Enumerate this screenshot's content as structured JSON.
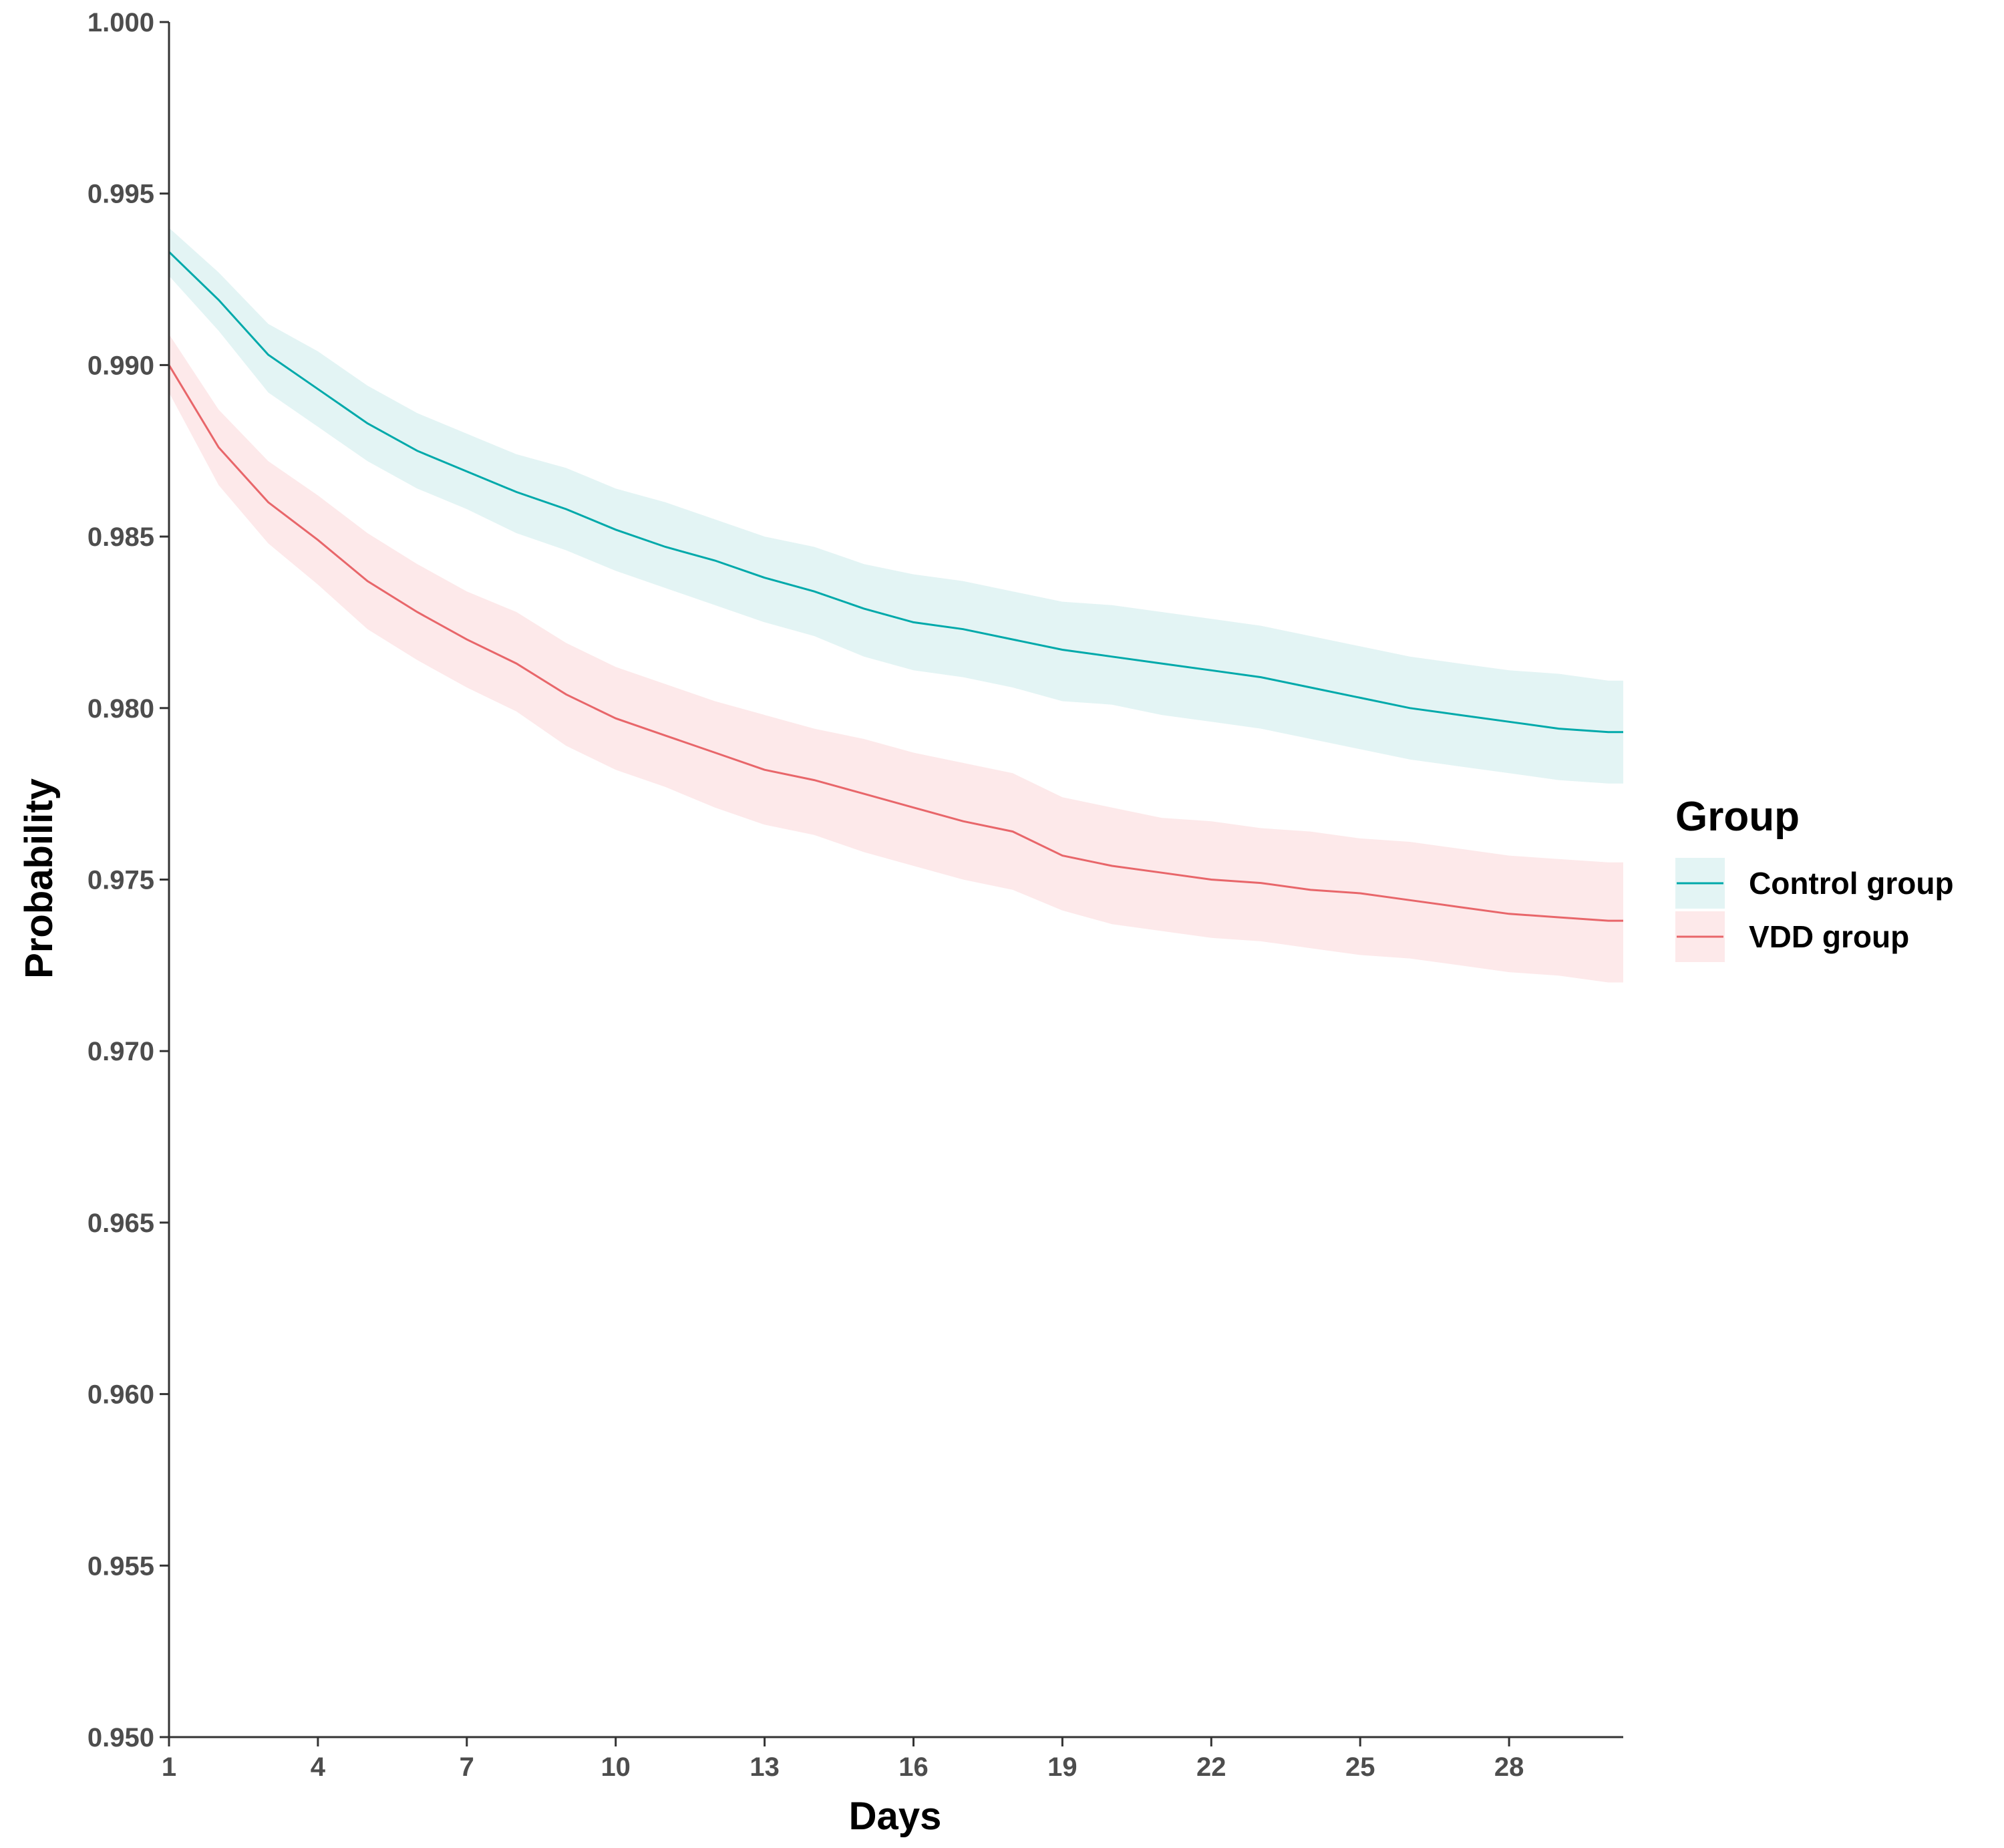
{
  "chart_data": {
    "type": "line",
    "xlabel": "Days",
    "ylabel": "Probability",
    "xlim": [
      1,
      30.3
    ],
    "ylim": [
      0.95,
      1.0
    ],
    "x_ticks": [
      1,
      4,
      7,
      10,
      13,
      16,
      19,
      22,
      25,
      28
    ],
    "y_ticks": [
      0.95,
      0.955,
      0.96,
      0.965,
      0.97,
      0.975,
      0.98,
      0.985,
      0.99,
      0.995,
      1.0
    ],
    "y_tick_labels": [
      "0.950",
      "0.955",
      "0.960",
      "0.965",
      "0.970",
      "0.975",
      "0.980",
      "0.985",
      "0.990",
      "0.995",
      "1.000"
    ],
    "grid": false,
    "legend": {
      "title": "Group",
      "placement": "right"
    },
    "series": [
      {
        "name": "Control group",
        "color": "#00A9AA",
        "band_color": "#E3F4F4",
        "x": [
          1,
          2,
          3,
          4,
          5,
          6,
          7,
          8,
          9,
          10,
          11,
          12,
          13,
          14,
          15,
          16,
          17,
          18,
          19,
          20,
          21,
          22,
          23,
          24,
          25,
          26,
          27,
          28,
          29,
          30,
          30.3
        ],
        "y": [
          0.9933,
          0.9919,
          0.9903,
          0.9893,
          0.9883,
          0.9875,
          0.9869,
          0.9863,
          0.9858,
          0.9852,
          0.9847,
          0.9843,
          0.9838,
          0.9834,
          0.9829,
          0.9825,
          0.9823,
          0.982,
          0.9817,
          0.9815,
          0.9813,
          0.9811,
          0.9809,
          0.9806,
          0.9803,
          0.98,
          0.9798,
          0.9796,
          0.9794,
          0.9793,
          0.9793
        ],
        "lower": [
          0.9926,
          0.991,
          0.9892,
          0.9882,
          0.9872,
          0.9864,
          0.9858,
          0.9851,
          0.9846,
          0.984,
          0.9835,
          0.983,
          0.9825,
          0.9821,
          0.9815,
          0.9811,
          0.9809,
          0.9806,
          0.9802,
          0.9801,
          0.9798,
          0.9796,
          0.9794,
          0.9791,
          0.9788,
          0.9785,
          0.9783,
          0.9781,
          0.9779,
          0.9778,
          0.9778
        ],
        "upper": [
          0.994,
          0.9927,
          0.9912,
          0.9904,
          0.9894,
          0.9886,
          0.988,
          0.9874,
          0.987,
          0.9864,
          0.986,
          0.9855,
          0.985,
          0.9847,
          0.9842,
          0.9839,
          0.9837,
          0.9834,
          0.9831,
          0.983,
          0.9828,
          0.9826,
          0.9824,
          0.9821,
          0.9818,
          0.9815,
          0.9813,
          0.9811,
          0.981,
          0.9808,
          0.9808
        ]
      },
      {
        "name": "VDD group",
        "color": "#E8666A",
        "band_color": "#FDE9EA",
        "x": [
          1,
          2,
          3,
          4,
          5,
          6,
          7,
          8,
          9,
          10,
          11,
          12,
          13,
          14,
          15,
          16,
          17,
          18,
          19,
          20,
          21,
          22,
          23,
          24,
          25,
          26,
          27,
          28,
          29,
          30,
          30.3
        ],
        "y": [
          0.99,
          0.9876,
          0.986,
          0.9849,
          0.9837,
          0.9828,
          0.982,
          0.9813,
          0.9804,
          0.9797,
          0.9792,
          0.9787,
          0.9782,
          0.9779,
          0.9775,
          0.9771,
          0.9767,
          0.9764,
          0.9757,
          0.9754,
          0.9752,
          0.975,
          0.9749,
          0.9747,
          0.9746,
          0.9744,
          0.9742,
          0.974,
          0.9739,
          0.9738,
          0.9738
        ],
        "lower": [
          0.9892,
          0.9865,
          0.9848,
          0.9836,
          0.9823,
          0.9814,
          0.9806,
          0.9799,
          0.9789,
          0.9782,
          0.9777,
          0.9771,
          0.9766,
          0.9763,
          0.9758,
          0.9754,
          0.975,
          0.9747,
          0.9741,
          0.9737,
          0.9735,
          0.9733,
          0.9732,
          0.973,
          0.9728,
          0.9727,
          0.9725,
          0.9723,
          0.9722,
          0.972,
          0.972
        ],
        "upper": [
          0.9909,
          0.9887,
          0.9872,
          0.9862,
          0.9851,
          0.9842,
          0.9834,
          0.9828,
          0.9819,
          0.9812,
          0.9807,
          0.9802,
          0.9798,
          0.9794,
          0.9791,
          0.9787,
          0.9784,
          0.9781,
          0.9774,
          0.9771,
          0.9768,
          0.9767,
          0.9765,
          0.9764,
          0.9762,
          0.9761,
          0.9759,
          0.9757,
          0.9756,
          0.9755,
          0.9755
        ]
      }
    ]
  }
}
